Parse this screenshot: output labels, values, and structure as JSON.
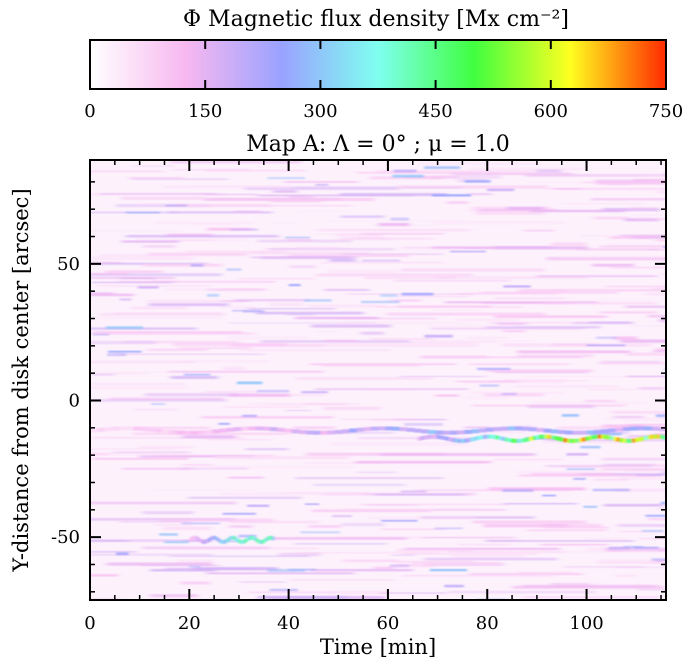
{
  "chart_data": {
    "type": "heatmap",
    "title": "Map A: Λ = 0° ; μ = 1.0",
    "xlabel": "Time [min]",
    "ylabel": "Y-distance from disk center [arcsec]",
    "xlim": [
      0,
      116
    ],
    "ylim": [
      -73,
      88
    ],
    "x_ticks": [
      0,
      20,
      40,
      60,
      80,
      100
    ],
    "y_ticks": [
      -50,
      0,
      50
    ],
    "colorbar": {
      "label": "Φ Magnetic flux density [Mx cm⁻²]",
      "range": [
        0,
        750
      ],
      "ticks": [
        0,
        150,
        300,
        450,
        600,
        750
      ],
      "colors": [
        "#ffffff",
        "#f7b8f0",
        "#9aa2ff",
        "#7ffff0",
        "#40ff40",
        "#ffff20",
        "#ff2a00"
      ]
    },
    "features": [
      {
        "name": "strong flux lane",
        "y": -14,
        "time_range": [
          66,
          116
        ],
        "max_flux": 750
      },
      {
        "name": "secondary lane",
        "y": -51,
        "time_range": [
          20,
          37
        ],
        "max_flux": 520
      },
      {
        "name": "weak lane",
        "y": -11,
        "time_range": [
          0,
          116
        ],
        "max_flux": 300
      }
    ]
  }
}
